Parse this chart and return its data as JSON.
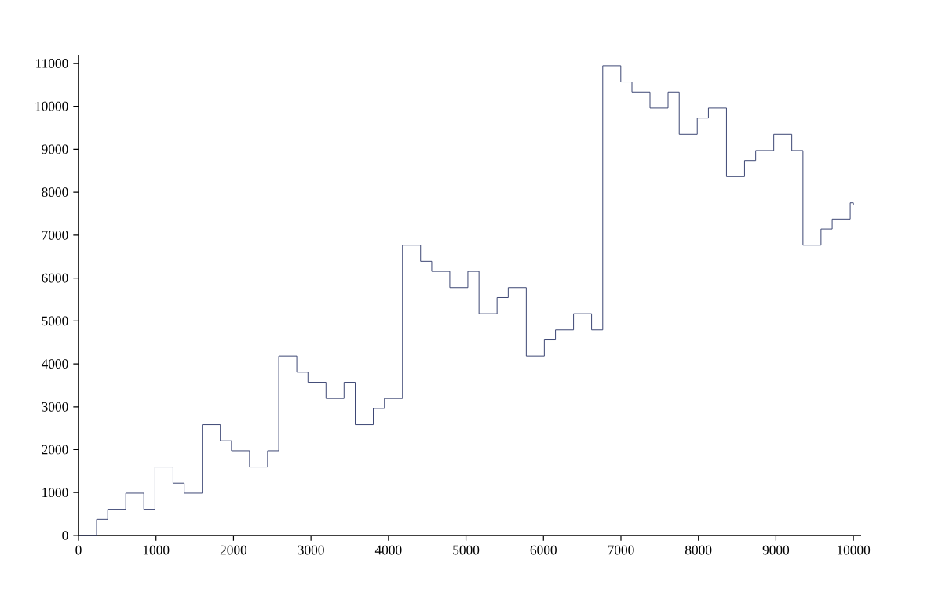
{
  "chart_data": {
    "type": "step",
    "color": "#2f3a6b",
    "x": [
      0,
      233,
      377,
      610,
      843,
      987,
      1220,
      1364,
      1597,
      1830,
      1974,
      2207,
      2440,
      2584,
      2817,
      2961,
      3194,
      3427,
      3571,
      3804,
      3948,
      4181,
      4414,
      4558,
      4791,
      5024,
      5168,
      5401,
      5545,
      5778,
      6011,
      6155,
      6388,
      6621,
      6765,
      6998,
      7142,
      7375,
      7608,
      7752,
      7985,
      8129,
      8362,
      8595,
      8739,
      8972,
      9205,
      9349,
      9582,
      9726,
      9959,
      10000
    ],
    "values": [
      0,
      377,
      610,
      987,
      610,
      1597,
      1220,
      987,
      2584,
      2207,
      1974,
      1597,
      1974,
      4181,
      3804,
      3571,
      3194,
      3571,
      2584,
      2961,
      3194,
      6765,
      6388,
      6155,
      5778,
      6155,
      5168,
      5545,
      5778,
      4181,
      4558,
      4791,
      5168,
      4791,
      10946,
      10569,
      10336,
      9959,
      10336,
      9349,
      9726,
      9959,
      8362,
      8739,
      8972,
      9349,
      8972,
      6765,
      7142,
      7375,
      7752,
      7702
    ],
    "xlim": [
      0,
      10100
    ],
    "ylim": [
      0,
      11200
    ],
    "xticks": [
      0,
      1000,
      2000,
      3000,
      4000,
      5000,
      6000,
      7000,
      8000,
      9000,
      10000
    ],
    "yticks": [
      0,
      1000,
      2000,
      3000,
      4000,
      5000,
      6000,
      7000,
      8000,
      9000,
      10000,
      11000
    ]
  }
}
